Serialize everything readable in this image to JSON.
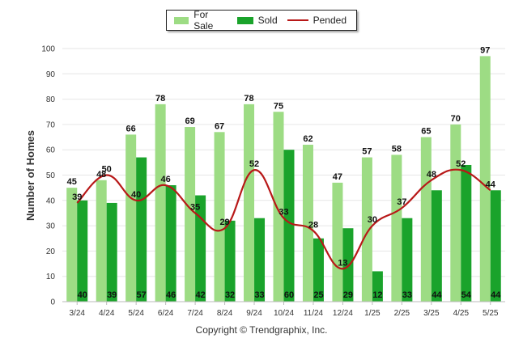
{
  "chart_data": {
    "type": "bar",
    "categories": [
      "3/24",
      "4/24",
      "5/24",
      "6/24",
      "7/24",
      "8/24",
      "9/24",
      "10/24",
      "11/24",
      "12/24",
      "1/25",
      "2/25",
      "3/25",
      "4/25",
      "5/25"
    ],
    "series": [
      {
        "name": "For Sale",
        "kind": "bar",
        "color": "#9ddc84",
        "values": [
          45,
          48,
          66,
          78,
          69,
          67,
          78,
          75,
          62,
          47,
          57,
          58,
          65,
          70,
          97
        ]
      },
      {
        "name": "Sold",
        "kind": "bar",
        "color": "#1aa32b",
        "values": [
          40,
          39,
          57,
          46,
          42,
          32,
          33,
          60,
          25,
          29,
          12,
          33,
          44,
          54,
          44
        ]
      },
      {
        "name": "Pended",
        "kind": "line",
        "color": "#b81818",
        "values": [
          39,
          50,
          40,
          46,
          35,
          29,
          52,
          33,
          28,
          13,
          30,
          37,
          48,
          52,
          44
        ]
      }
    ],
    "ylabel": "Number of Homes",
    "xlabel": "",
    "ylim": [
      0,
      100
    ],
    "yticks": [
      0,
      10,
      20,
      30,
      40,
      50,
      60,
      70,
      80,
      90,
      100
    ],
    "grid": true,
    "legend": "top-center"
  },
  "copyright": "Copyright © Trendgraphix, Inc."
}
